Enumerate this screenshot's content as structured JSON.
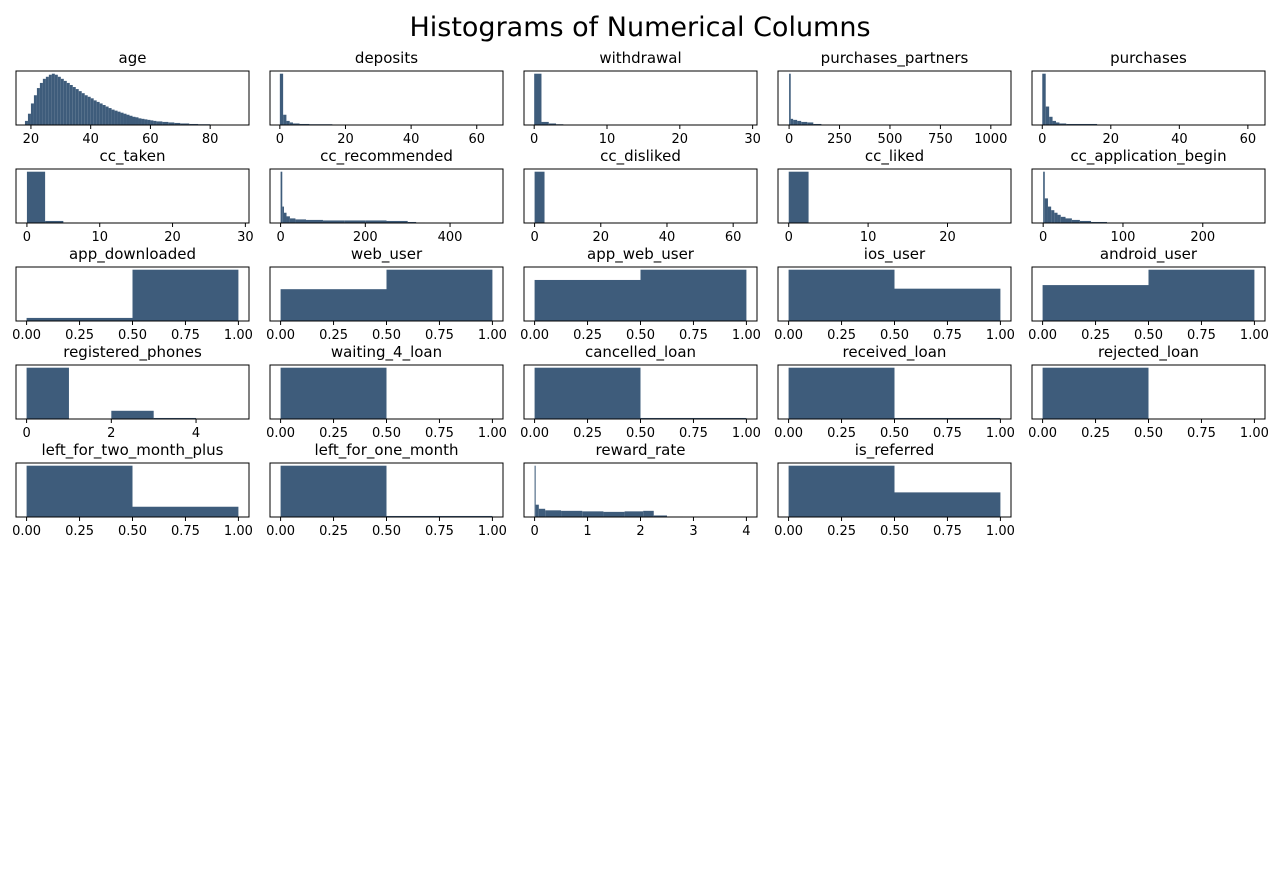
{
  "figure": {
    "title": "Histograms of Numerical Columns",
    "bar_color": "#3e5c7b"
  },
  "chart_data": [
    {
      "type": "bar",
      "title": "age",
      "xlim": [
        15,
        93
      ],
      "xticks": [
        "20",
        "40",
        "60",
        "80"
      ],
      "xtick_values": [
        20,
        40,
        60,
        80
      ],
      "bins": [
        [
          18,
          19,
          0.08
        ],
        [
          19,
          20,
          0.22
        ],
        [
          20,
          21,
          0.42
        ],
        [
          21,
          22,
          0.58
        ],
        [
          22,
          23,
          0.72
        ],
        [
          23,
          24,
          0.82
        ],
        [
          24,
          25,
          0.9
        ],
        [
          25,
          26,
          0.94
        ],
        [
          26,
          27,
          0.98
        ],
        [
          27,
          28,
          1.0
        ],
        [
          28,
          29,
          0.98
        ],
        [
          29,
          30,
          0.94
        ],
        [
          30,
          31,
          0.9
        ],
        [
          31,
          32,
          0.86
        ],
        [
          32,
          33,
          0.82
        ],
        [
          33,
          34,
          0.78
        ],
        [
          34,
          35,
          0.74
        ],
        [
          35,
          36,
          0.7
        ],
        [
          36,
          37,
          0.66
        ],
        [
          37,
          38,
          0.62
        ],
        [
          38,
          39,
          0.58
        ],
        [
          39,
          40,
          0.55
        ],
        [
          40,
          41,
          0.52
        ],
        [
          41,
          42,
          0.48
        ],
        [
          42,
          43,
          0.45
        ],
        [
          43,
          44,
          0.42
        ],
        [
          44,
          45,
          0.39
        ],
        [
          45,
          46,
          0.36
        ],
        [
          46,
          47,
          0.33
        ],
        [
          47,
          48,
          0.3
        ],
        [
          48,
          49,
          0.28
        ],
        [
          49,
          50,
          0.26
        ],
        [
          50,
          51,
          0.24
        ],
        [
          51,
          52,
          0.22
        ],
        [
          52,
          53,
          0.2
        ],
        [
          53,
          54,
          0.18
        ],
        [
          54,
          55,
          0.16
        ],
        [
          55,
          56,
          0.15
        ],
        [
          56,
          57,
          0.13
        ],
        [
          57,
          58,
          0.12
        ],
        [
          58,
          59,
          0.11
        ],
        [
          59,
          60,
          0.1
        ],
        [
          60,
          61,
          0.09
        ],
        [
          61,
          62,
          0.08
        ],
        [
          62,
          64,
          0.07
        ],
        [
          64,
          66,
          0.06
        ],
        [
          66,
          68,
          0.05
        ],
        [
          68,
          70,
          0.04
        ],
        [
          70,
          73,
          0.03
        ],
        [
          73,
          76,
          0.02
        ],
        [
          76,
          80,
          0.015
        ],
        [
          80,
          84,
          0.01
        ],
        [
          84,
          90,
          0.005
        ]
      ]
    },
    {
      "type": "bar",
      "title": "deposits",
      "xlim": [
        -3,
        68
      ],
      "xticks": [
        "0",
        "20",
        "40",
        "60"
      ],
      "xtick_values": [
        0,
        20,
        40,
        60
      ],
      "bins": [
        [
          0,
          1,
          1.0
        ],
        [
          1,
          2,
          0.2
        ],
        [
          2,
          3,
          0.08
        ],
        [
          3,
          4,
          0.05
        ],
        [
          4,
          6,
          0.03
        ],
        [
          6,
          9,
          0.02
        ],
        [
          9,
          16,
          0.015
        ],
        [
          16,
          30,
          0.005
        ]
      ]
    },
    {
      "type": "bar",
      "title": "withdrawal",
      "xlim": [
        -1.4,
        30.6
      ],
      "xticks": [
        "0",
        "10",
        "20",
        "30"
      ],
      "xtick_values": [
        0,
        10,
        20,
        30
      ],
      "bins": [
        [
          0,
          1,
          1.0
        ],
        [
          1,
          2,
          0.06
        ],
        [
          2,
          3,
          0.03
        ],
        [
          3,
          4,
          0.015
        ],
        [
          4,
          7,
          0.006
        ]
      ]
    },
    {
      "type": "bar",
      "title": "purchases_partners",
      "xlim": [
        -55,
        1100
      ],
      "xticks": [
        "0",
        "250",
        "500",
        "750",
        "1000"
      ],
      "xtick_values": [
        0,
        250,
        500,
        750,
        1000
      ],
      "bins": [
        [
          0,
          8,
          1.0
        ],
        [
          8,
          20,
          0.12
        ],
        [
          20,
          40,
          0.1
        ],
        [
          40,
          60,
          0.08
        ],
        [
          60,
          90,
          0.06
        ],
        [
          90,
          120,
          0.05
        ],
        [
          120,
          160,
          0.02
        ],
        [
          160,
          200,
          0.01
        ],
        [
          200,
          300,
          0.005
        ]
      ]
    },
    {
      "type": "bar",
      "title": "purchases",
      "xlim": [
        -3,
        65
      ],
      "xticks": [
        "0",
        "20",
        "40",
        "60"
      ],
      "xtick_values": [
        0,
        20,
        40,
        60
      ],
      "bins": [
        [
          0,
          1,
          1.0
        ],
        [
          1,
          2,
          0.36
        ],
        [
          2,
          3,
          0.16
        ],
        [
          3,
          4,
          0.08
        ],
        [
          4,
          5,
          0.05
        ],
        [
          5,
          7,
          0.03
        ],
        [
          7,
          16,
          0.02
        ],
        [
          16,
          30,
          0.005
        ]
      ]
    },
    {
      "type": "bar",
      "title": "cc_taken",
      "xlim": [
        -1.5,
        30.5
      ],
      "xticks": [
        "0",
        "10",
        "20",
        "30"
      ],
      "xtick_values": [
        0,
        10,
        20,
        30
      ],
      "bins": [
        [
          0,
          2.5,
          1.0
        ],
        [
          2.5,
          5,
          0.04
        ],
        [
          5,
          7,
          0.01
        ]
      ]
    },
    {
      "type": "bar",
      "title": "cc_recommended",
      "xlim": [
        -25,
        525
      ],
      "xticks": [
        "0",
        "200",
        "400"
      ],
      "xtick_values": [
        0,
        200,
        400
      ],
      "bins": [
        [
          0,
          4,
          1.0
        ],
        [
          4,
          8,
          0.32
        ],
        [
          8,
          14,
          0.2
        ],
        [
          14,
          22,
          0.13
        ],
        [
          22,
          35,
          0.09
        ],
        [
          35,
          60,
          0.07
        ],
        [
          60,
          100,
          0.06
        ],
        [
          100,
          150,
          0.05
        ],
        [
          150,
          200,
          0.05
        ],
        [
          200,
          250,
          0.05
        ],
        [
          250,
          300,
          0.04
        ],
        [
          300,
          320,
          0.02
        ],
        [
          320,
          340,
          0.01
        ]
      ]
    },
    {
      "type": "bar",
      "title": "cc_disliked",
      "xlim": [
        -3.2,
        67.2
      ],
      "xticks": [
        "0",
        "20",
        "40",
        "60"
      ],
      "xtick_values": [
        0,
        20,
        40,
        60
      ],
      "bins": [
        [
          0,
          3,
          1.0
        ],
        [
          3,
          5,
          0.01
        ]
      ]
    },
    {
      "type": "bar",
      "title": "cc_liked",
      "xlim": [
        -1.35,
        28
      ],
      "xticks": [
        "0",
        "10",
        "20"
      ],
      "xtick_values": [
        0,
        10,
        20
      ],
      "bins": [
        [
          0,
          2.5,
          1.0
        ],
        [
          2.5,
          5,
          0.01
        ]
      ]
    },
    {
      "type": "bar",
      "title": "cc_application_begin",
      "xlim": [
        -14,
        278
      ],
      "xticks": [
        "0",
        "100",
        "200"
      ],
      "xtick_values": [
        0,
        100,
        200
      ],
      "bins": [
        [
          0,
          2,
          1.0
        ],
        [
          2,
          6,
          0.48
        ],
        [
          6,
          10,
          0.32
        ],
        [
          10,
          14,
          0.25
        ],
        [
          14,
          18,
          0.2
        ],
        [
          18,
          22,
          0.16
        ],
        [
          22,
          28,
          0.12
        ],
        [
          28,
          36,
          0.09
        ],
        [
          36,
          46,
          0.06
        ],
        [
          46,
          60,
          0.04
        ],
        [
          60,
          80,
          0.02
        ],
        [
          80,
          110,
          0.01
        ]
      ]
    },
    {
      "type": "bar",
      "title": "app_downloaded",
      "xlim": [
        -0.05,
        1.05
      ],
      "xticks": [
        "0.00",
        "0.25",
        "0.50",
        "0.75",
        "1.00"
      ],
      "xtick_values": [
        0,
        0.25,
        0.5,
        0.75,
        1
      ],
      "bins": [
        [
          0,
          0.5,
          0.06
        ],
        [
          0.5,
          1,
          1.0
        ]
      ]
    },
    {
      "type": "bar",
      "title": "web_user",
      "xlim": [
        -0.05,
        1.05
      ],
      "xticks": [
        "0.00",
        "0.25",
        "0.50",
        "0.75",
        "1.00"
      ],
      "xtick_values": [
        0,
        0.25,
        0.5,
        0.75,
        1
      ],
      "bins": [
        [
          0,
          0.5,
          0.62
        ],
        [
          0.5,
          1,
          1.0
        ]
      ]
    },
    {
      "type": "bar",
      "title": "app_web_user",
      "xlim": [
        -0.05,
        1.05
      ],
      "xticks": [
        "0.00",
        "0.25",
        "0.50",
        "0.75",
        "1.00"
      ],
      "xtick_values": [
        0,
        0.25,
        0.5,
        0.75,
        1
      ],
      "bins": [
        [
          0,
          0.5,
          0.8
        ],
        [
          0.5,
          1,
          1.0
        ]
      ]
    },
    {
      "type": "bar",
      "title": "ios_user",
      "xlim": [
        -0.05,
        1.05
      ],
      "xticks": [
        "0.00",
        "0.25",
        "0.50",
        "0.75",
        "1.00"
      ],
      "xtick_values": [
        0,
        0.25,
        0.5,
        0.75,
        1
      ],
      "bins": [
        [
          0,
          0.5,
          1.0
        ],
        [
          0.5,
          1,
          0.63
        ]
      ]
    },
    {
      "type": "bar",
      "title": "android_user",
      "xlim": [
        -0.05,
        1.05
      ],
      "xticks": [
        "0.00",
        "0.25",
        "0.50",
        "0.75",
        "1.00"
      ],
      "xtick_values": [
        0,
        0.25,
        0.5,
        0.75,
        1
      ],
      "bins": [
        [
          0,
          0.5,
          0.7
        ],
        [
          0.5,
          1,
          1.0
        ]
      ]
    },
    {
      "type": "bar",
      "title": "registered_phones",
      "xlim": [
        -0.25,
        5.25
      ],
      "xticks": [
        "0",
        "2",
        "4"
      ],
      "xtick_values": [
        0,
        2,
        4
      ],
      "bins": [
        [
          0,
          1,
          1.0
        ],
        [
          2,
          3,
          0.16
        ],
        [
          3,
          4,
          0.02
        ]
      ]
    },
    {
      "type": "bar",
      "title": "waiting_4_loan",
      "xlim": [
        -0.05,
        1.05
      ],
      "xticks": [
        "0.00",
        "0.25",
        "0.50",
        "0.75",
        "1.00"
      ],
      "xtick_values": [
        0,
        0.25,
        0.5,
        0.75,
        1
      ],
      "bins": [
        [
          0,
          0.5,
          1.0
        ],
        [
          0.5,
          1,
          0.002
        ]
      ]
    },
    {
      "type": "bar",
      "title": "cancelled_loan",
      "xlim": [
        -0.05,
        1.05
      ],
      "xticks": [
        "0.00",
        "0.25",
        "0.50",
        "0.75",
        "1.00"
      ],
      "xtick_values": [
        0,
        0.25,
        0.5,
        0.75,
        1
      ],
      "bins": [
        [
          0,
          0.5,
          1.0
        ],
        [
          0.5,
          1,
          0.02
        ]
      ]
    },
    {
      "type": "bar",
      "title": "received_loan",
      "xlim": [
        -0.05,
        1.05
      ],
      "xticks": [
        "0.00",
        "0.25",
        "0.50",
        "0.75",
        "1.00"
      ],
      "xtick_values": [
        0,
        0.25,
        0.5,
        0.75,
        1
      ],
      "bins": [
        [
          0,
          0.5,
          1.0
        ],
        [
          0.5,
          1,
          0.02
        ]
      ]
    },
    {
      "type": "bar",
      "title": "rejected_loan",
      "xlim": [
        -0.05,
        1.05
      ],
      "xticks": [
        "0.00",
        "0.25",
        "0.50",
        "0.75",
        "1.00"
      ],
      "xtick_values": [
        0,
        0.25,
        0.5,
        0.75,
        1
      ],
      "bins": [
        [
          0,
          0.5,
          1.0
        ],
        [
          0.5,
          1,
          0.002
        ]
      ]
    },
    {
      "type": "bar",
      "title": "left_for_two_month_plus",
      "xlim": [
        -0.05,
        1.05
      ],
      "xticks": [
        "0.00",
        "0.25",
        "0.50",
        "0.75",
        "1.00"
      ],
      "xtick_values": [
        0,
        0.25,
        0.5,
        0.75,
        1
      ],
      "bins": [
        [
          0,
          0.5,
          1.0
        ],
        [
          0.5,
          1,
          0.2
        ]
      ]
    },
    {
      "type": "bar",
      "title": "left_for_one_month",
      "xlim": [
        -0.05,
        1.05
      ],
      "xticks": [
        "0.00",
        "0.25",
        "0.50",
        "0.75",
        "1.00"
      ],
      "xtick_values": [
        0,
        0.25,
        0.5,
        0.75,
        1
      ],
      "bins": [
        [
          0,
          0.5,
          1.0
        ],
        [
          0.5,
          1,
          0.02
        ]
      ]
    },
    {
      "type": "bar",
      "title": "reward_rate",
      "xlim": [
        -0.2,
        4.2
      ],
      "xticks": [
        "0",
        "1",
        "2",
        "3",
        "4"
      ],
      "xtick_values": [
        0,
        1,
        2,
        3,
        4
      ],
      "bins": [
        [
          0,
          0.02,
          1.0
        ],
        [
          0.02,
          0.08,
          0.24
        ],
        [
          0.08,
          0.2,
          0.16
        ],
        [
          0.2,
          0.5,
          0.13
        ],
        [
          0.5,
          0.9,
          0.12
        ],
        [
          0.9,
          1.3,
          0.11
        ],
        [
          1.3,
          1.7,
          0.1
        ],
        [
          1.7,
          2.05,
          0.11
        ],
        [
          2.05,
          2.25,
          0.12
        ],
        [
          2.25,
          2.5,
          0.03
        ],
        [
          2.5,
          2.8,
          0.01
        ]
      ]
    },
    {
      "type": "bar",
      "title": "is_referred",
      "xlim": [
        -0.05,
        1.05
      ],
      "xticks": [
        "0.00",
        "0.25",
        "0.50",
        "0.75",
        "1.00"
      ],
      "xtick_values": [
        0,
        0.25,
        0.5,
        0.75,
        1
      ],
      "bins": [
        [
          0,
          0.5,
          1.0
        ],
        [
          0.5,
          1,
          0.48
        ]
      ]
    }
  ]
}
